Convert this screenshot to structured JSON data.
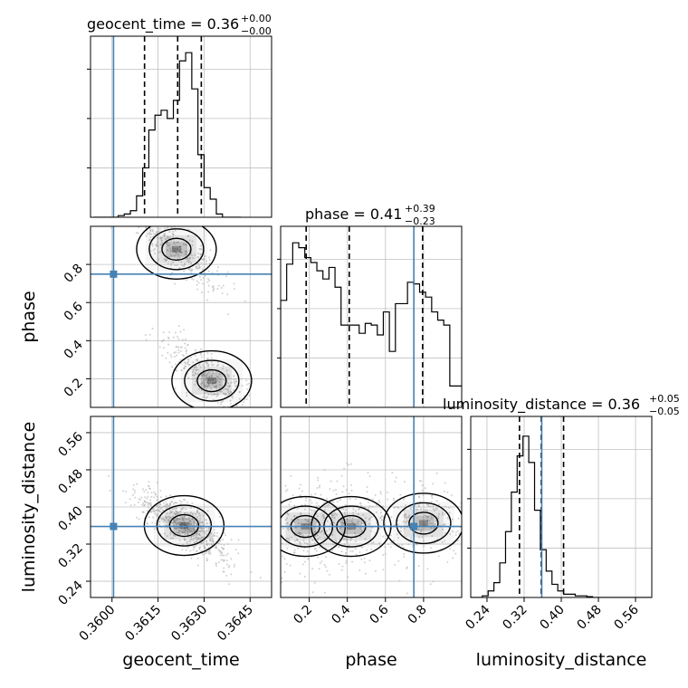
{
  "chart_data": {
    "type": "corner",
    "params": [
      "geocent_time",
      "phase",
      "luminosity_distance"
    ],
    "titles": [
      {
        "name": "geocent_time",
        "median": "0.36",
        "plus": "+0.00",
        "minus": "−0.00"
      },
      {
        "name": "phase",
        "median": "0.41",
        "plus": "+0.39",
        "minus": "−0.23"
      },
      {
        "name": "luminosity_distance",
        "median": "0.36",
        "plus": "+0.05",
        "minus": "−0.05"
      }
    ],
    "axes": {
      "geocent_time": {
        "range": [
          0.3593,
          0.3652
        ],
        "ticks": [
          "0.3600",
          "0.3615",
          "0.3630",
          "0.3645"
        ],
        "tick_values": [
          0.36,
          0.3615,
          0.363,
          0.3645
        ]
      },
      "phase": {
        "range": [
          0.05,
          1.0
        ],
        "ticks": [
          "0.2",
          "0.4",
          "0.6",
          "0.8"
        ],
        "tick_values": [
          0.2,
          0.4,
          0.6,
          0.8
        ]
      },
      "luminosity_distance": {
        "range": [
          0.205,
          0.595
        ],
        "ticks": [
          "0.24",
          "0.32",
          "0.40",
          "0.48",
          "0.56"
        ],
        "tick_values": [
          0.24,
          0.32,
          0.4,
          0.48,
          0.56
        ]
      }
    },
    "truths": {
      "geocent_time": 0.36005,
      "phase": 0.749,
      "luminosity_distance": 0.358
    },
    "quantiles": {
      "geocent_time": [
        0.36106,
        0.36214,
        0.36291
      ],
      "phase": [
        0.184,
        0.41,
        0.795
      ],
      "luminosity_distance": [
        0.31,
        0.357,
        0.405
      ]
    },
    "histograms": {
      "geocent_time": {
        "bin_start": 0.3594,
        "bin_width": 0.0002,
        "counts": [
          0,
          0,
          0,
          0,
          0.01,
          0.02,
          0.04,
          0.13,
          0.3,
          0.53,
          0.62,
          0.65,
          0.6,
          0.71,
          0.95,
          1.0,
          0.78,
          0.38,
          0.18,
          0.11,
          0.02,
          0,
          0,
          0
        ]
      },
      "phase": {
        "bin_start": 0.05,
        "bin_width": 0.0317,
        "counts": [
          0.65,
          0.87,
          1.0,
          0.97,
          0.91,
          0.88,
          0.83,
          0.78,
          0.85,
          0.73,
          0.5,
          0.5,
          0.5,
          0.45,
          0.51,
          0.5,
          0.44,
          0.58,
          0.34,
          0.63,
          0.63,
          0.76,
          0.75,
          0.7,
          0.67,
          0.58,
          0.53,
          0.5,
          0.13,
          0.13
        ]
      },
      "luminosity_distance": {
        "bin_start": 0.205,
        "bin_width": 0.0125,
        "counts": [
          0,
          0,
          0.01,
          0.04,
          0.09,
          0.21,
          0.4,
          0.64,
          0.86,
          0.98,
          0.82,
          0.53,
          0.29,
          0.16,
          0.08,
          0.04,
          0.02,
          0.02,
          0.01,
          0.01,
          0.005,
          0,
          0,
          0,
          0,
          0,
          0,
          0,
          0,
          0,
          0
        ]
      }
    },
    "credible_regions": {
      "phase_vs_geocent_time": {
        "levels": [
          "1σ",
          "2σ",
          "3σ"
        ],
        "modes": [
          [
            0.3621,
            0.88
          ],
          [
            0.36325,
            0.19
          ]
        ]
      },
      "luminosity_distance_vs_geocent_time": {
        "levels": [
          "1σ",
          "2σ",
          "3σ"
        ],
        "modes": [
          [
            0.36235,
            0.36
          ]
        ]
      },
      "luminosity_distance_vs_phase": {
        "levels": [
          "1σ",
          "2σ",
          "3σ"
        ],
        "modes": [
          [
            0.18,
            0.358
          ],
          [
            0.42,
            0.358
          ],
          [
            0.8,
            0.365
          ]
        ]
      }
    },
    "colors": {
      "truth": "#4682b4",
      "histogram": "#000000",
      "quantile": "#000000",
      "contour": "#000000",
      "scatter": "#b4b4b4",
      "grid": "#c0c0c0"
    }
  }
}
